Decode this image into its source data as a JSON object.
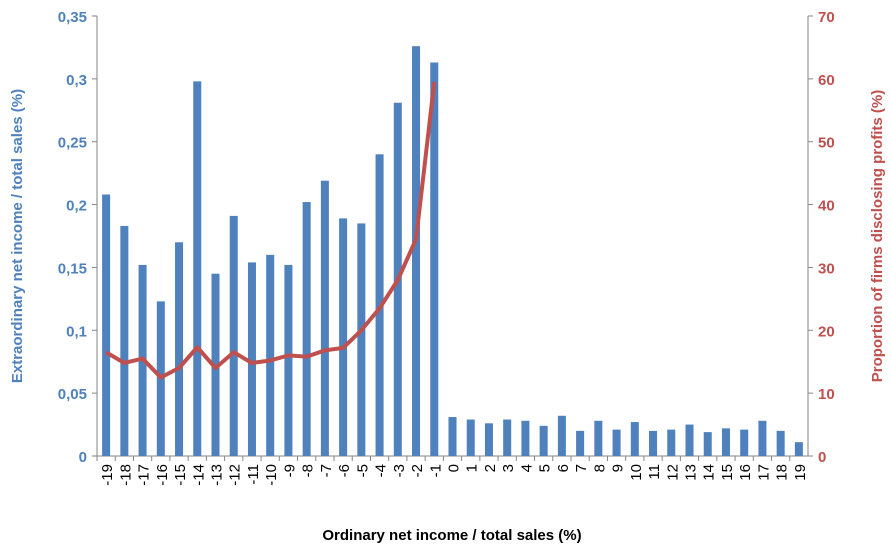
{
  "chart_data": {
    "type": "bar",
    "xlabel": "Ordinary net income / total sales (%)",
    "ylabel": "Extraordinary net income / total sales (%)",
    "y2label": "Proportion of firms disclosing profits (%)",
    "categories": [
      "-19",
      "-18",
      "-17",
      "-16",
      "-15",
      "-14",
      "-13",
      "-12",
      "-11",
      "-10",
      "-9",
      "-8",
      "-7",
      "-6",
      "-5",
      "-4",
      "-3",
      "-2",
      "-1",
      "0",
      "1",
      "2",
      "3",
      "4",
      "5",
      "6",
      "7",
      "8",
      "9",
      "10",
      "11",
      "12",
      "13",
      "14",
      "15",
      "16",
      "17",
      "18",
      "19"
    ],
    "series": [
      {
        "type": "bar",
        "color": "#4f81bd",
        "values": [
          0.208,
          0.183,
          0.152,
          0.123,
          0.17,
          0.298,
          0.145,
          0.191,
          0.154,
          0.16,
          0.152,
          0.202,
          0.219,
          0.189,
          0.185,
          0.24,
          0.281,
          0.326,
          0.313,
          0.031,
          0.029,
          0.026,
          0.029,
          0.028,
          0.024,
          0.032,
          0.02,
          0.028,
          0.021,
          0.027,
          0.02,
          0.021,
          0.025,
          0.019,
          0.022,
          0.021,
          0.028,
          0.02,
          0.011
        ]
      },
      {
        "type": "line",
        "axis": "y2",
        "color": "#c0504d",
        "values": [
          16.5,
          14.8,
          15.5,
          12.5,
          14,
          17.3,
          14,
          16.5,
          14.8,
          15.2,
          16,
          15.8,
          16.8,
          17.2,
          20,
          23.5,
          28,
          34.5,
          59.5,
          null,
          null,
          null,
          null,
          null,
          null,
          null,
          null,
          null,
          null,
          null,
          null,
          null,
          null,
          null,
          null,
          null,
          null,
          null,
          null
        ]
      }
    ],
    "ylim": [
      0,
      0.35
    ],
    "yticks": [
      0,
      {
        "value": 0.05,
        "label": "0,05"
      },
      {
        "value": 0.1,
        "label": "0,1"
      },
      {
        "value": 0.15,
        "label": "0,15"
      },
      {
        "value": 0.2,
        "label": "0,2"
      },
      {
        "value": 0.25,
        "label": "0,25"
      },
      {
        "value": 0.3,
        "label": "0,3"
      },
      {
        "value": 0.35,
        "label": "0,35"
      }
    ],
    "y2lim": [
      0,
      70
    ],
    "y2ticks": [
      0,
      10,
      20,
      30,
      40,
      50,
      60,
      70
    ],
    "ycolor": "#4f81bd",
    "y2color": "#c0504d"
  }
}
